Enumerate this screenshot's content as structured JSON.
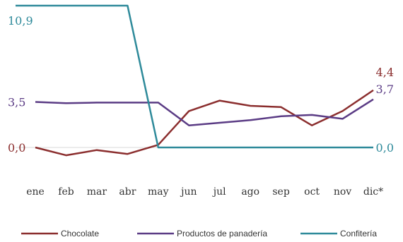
{
  "chart_data": {
    "type": "line",
    "categories": [
      "ene",
      "feb",
      "mar",
      "abr",
      "may",
      "jun",
      "jul",
      "ago",
      "sep",
      "oct",
      "nov",
      "dic*"
    ],
    "series": [
      {
        "name": "Chocolate",
        "color": "#8B2E2E",
        "values": [
          0.0,
          -0.6,
          -0.2,
          -0.5,
          0.2,
          2.8,
          3.6,
          3.2,
          3.1,
          1.7,
          2.8,
          4.4
        ],
        "labels": [
          {
            "index": 0,
            "text": "0,0"
          },
          {
            "index": 11,
            "text": "4,4"
          }
        ]
      },
      {
        "name": "Productos de panadería",
        "color": "#5B3C85",
        "values": [
          3.5,
          3.4,
          3.45,
          3.45,
          3.45,
          1.7,
          1.9,
          2.1,
          2.4,
          2.5,
          2.2,
          3.7
        ],
        "labels": [
          {
            "index": 0,
            "text": "3,5"
          },
          {
            "index": 11,
            "text": "3,7"
          }
        ]
      },
      {
        "name": "Confitería",
        "color": "#2E8A9A",
        "values": [
          10.9,
          10.9,
          10.9,
          10.9,
          0.0,
          0.0,
          0.0,
          0.0,
          0.0,
          0.0,
          0.0,
          0.0
        ],
        "labels": [
          {
            "index": 0,
            "text": "10,9"
          },
          {
            "index": 11,
            "text": "0,0"
          }
        ]
      }
    ],
    "ylim": [
      -0.8,
      11.6
    ],
    "legend_position": "bottom"
  }
}
